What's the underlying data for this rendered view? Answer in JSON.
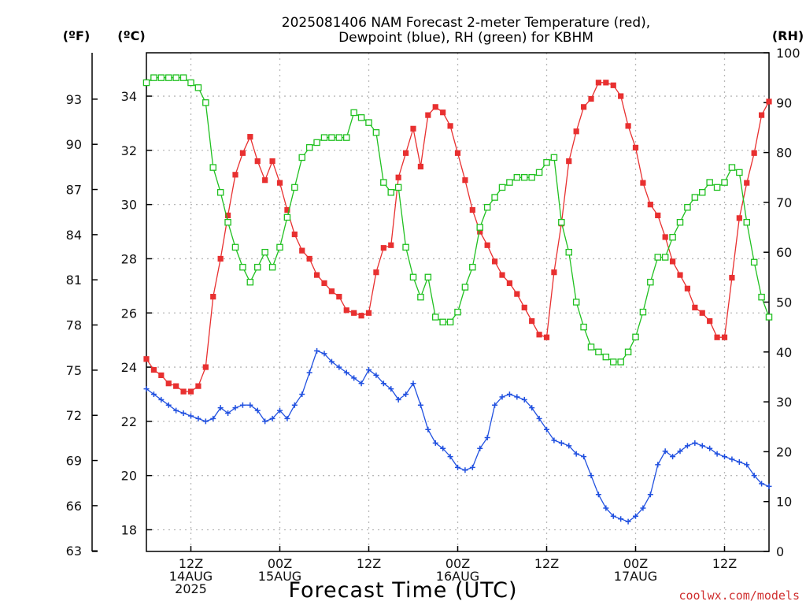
{
  "chart_data": {
    "type": "line",
    "title_lines": [
      "2025081406 NAM Forecast 2-meter Temperature (red),",
      "Dewpoint (blue), RH (green) for KBHM"
    ],
    "xlabel": "Forecast Time (UTC)",
    "credit": "coolwx.com/models",
    "units": {
      "fahrenheit": "(ºF)",
      "celsius": "(ºC)",
      "rh": "(RH)"
    },
    "x_range_hours_after_06z_14aug": [
      0,
      84
    ],
    "x_ticks": [
      {
        "hour": 6,
        "lines": [
          "12Z",
          "14AUG",
          "2025"
        ]
      },
      {
        "hour": 18,
        "lines": [
          "00Z",
          "15AUG"
        ]
      },
      {
        "hour": 30,
        "lines": [
          "12Z"
        ]
      },
      {
        "hour": 42,
        "lines": [
          "00Z",
          "16AUG"
        ]
      },
      {
        "hour": 54,
        "lines": [
          "12Z"
        ]
      },
      {
        "hour": 66,
        "lines": [
          "00Z",
          "17AUG"
        ]
      },
      {
        "hour": 78,
        "lines": [
          "12Z"
        ]
      }
    ],
    "y_celsius": {
      "range": [
        17.2,
        35.6
      ],
      "ticks": [
        18,
        20,
        22,
        24,
        26,
        28,
        30,
        32,
        34
      ]
    },
    "y_fahrenheit": {
      "ticks": [
        63,
        66,
        69,
        72,
        75,
        78,
        81,
        84,
        87,
        90,
        93
      ]
    },
    "y_rh": {
      "range": [
        0,
        100
      ],
      "ticks": [
        0,
        10,
        20,
        30,
        40,
        50,
        60,
        70,
        80,
        90,
        100
      ]
    },
    "grid": true,
    "series": [
      {
        "name": "Temperature",
        "unit": "C",
        "color": "#e83030",
        "marker": "filled-square",
        "values": [
          24.3,
          23.9,
          23.7,
          23.4,
          23.3,
          23.1,
          23.1,
          23.3,
          24.0,
          26.6,
          28.0,
          29.6,
          31.1,
          31.9,
          32.5,
          31.6,
          30.9,
          31.6,
          30.8,
          29.8,
          28.9,
          28.3,
          28.0,
          27.4,
          27.1,
          26.8,
          26.6,
          26.1,
          26.0,
          25.9,
          26.0,
          27.5,
          28.4,
          28.5,
          31.0,
          31.9,
          32.8,
          31.4,
          33.3,
          33.6,
          33.4,
          32.9,
          31.9,
          30.9,
          29.8,
          29.0,
          28.5,
          27.9,
          27.4,
          27.1,
          26.7,
          26.2,
          25.7,
          25.2,
          25.1,
          27.5,
          29.3,
          31.6,
          32.7,
          33.6,
          33.9,
          34.5,
          34.5,
          34.4,
          34.0,
          32.9,
          32.1,
          30.8,
          30.0,
          29.6,
          28.8,
          27.9,
          27.4,
          26.9,
          26.2,
          26.0,
          25.7,
          25.1,
          25.1,
          27.3,
          29.5,
          30.8,
          31.9,
          33.3,
          33.8
        ]
      },
      {
        "name": "Dewpoint",
        "unit": "C",
        "color": "#2050e0",
        "marker": "plus",
        "values": [
          23.2,
          23.0,
          22.8,
          22.6,
          22.4,
          22.3,
          22.2,
          22.1,
          22.0,
          22.1,
          22.5,
          22.3,
          22.5,
          22.6,
          22.6,
          22.4,
          22.0,
          22.1,
          22.4,
          22.1,
          22.6,
          23.0,
          23.8,
          24.6,
          24.5,
          24.2,
          24.0,
          23.8,
          23.6,
          23.4,
          23.9,
          23.7,
          23.4,
          23.2,
          22.8,
          23.0,
          23.4,
          22.6,
          21.7,
          21.2,
          21.0,
          20.7,
          20.3,
          20.2,
          20.3,
          21.0,
          21.4,
          22.6,
          22.9,
          23.0,
          22.9,
          22.8,
          22.5,
          22.1,
          21.7,
          21.3,
          21.2,
          21.1,
          20.8,
          20.7,
          20.0,
          19.3,
          18.8,
          18.5,
          18.4,
          18.3,
          18.5,
          18.8,
          19.3,
          20.4,
          20.9,
          20.7,
          20.9,
          21.1,
          21.2,
          21.1,
          21.0,
          20.8,
          20.7,
          20.6,
          20.5,
          20.4,
          20.0,
          19.7,
          19.6
        ]
      },
      {
        "name": "RH",
        "unit": "%",
        "color": "#20c020",
        "marker": "open-square",
        "values": [
          94,
          95,
          95,
          95,
          95,
          95,
          94,
          93,
          90,
          77,
          72,
          66,
          61,
          57,
          54,
          57,
          60,
          57,
          61,
          67,
          73,
          79,
          81,
          82,
          83,
          83,
          83,
          83,
          88,
          87,
          86,
          84,
          74,
          72,
          73,
          61,
          55,
          51,
          55,
          47,
          46,
          46,
          48,
          53,
          57,
          65,
          69,
          71,
          73,
          74,
          75,
          75,
          75,
          76,
          78,
          79,
          66,
          60,
          50,
          45,
          41,
          40,
          39,
          38,
          38,
          40,
          43,
          48,
          54,
          59,
          59,
          63,
          66,
          69,
          71,
          72,
          74,
          73,
          74,
          77,
          76,
          66,
          58,
          51,
          47
        ]
      }
    ]
  }
}
